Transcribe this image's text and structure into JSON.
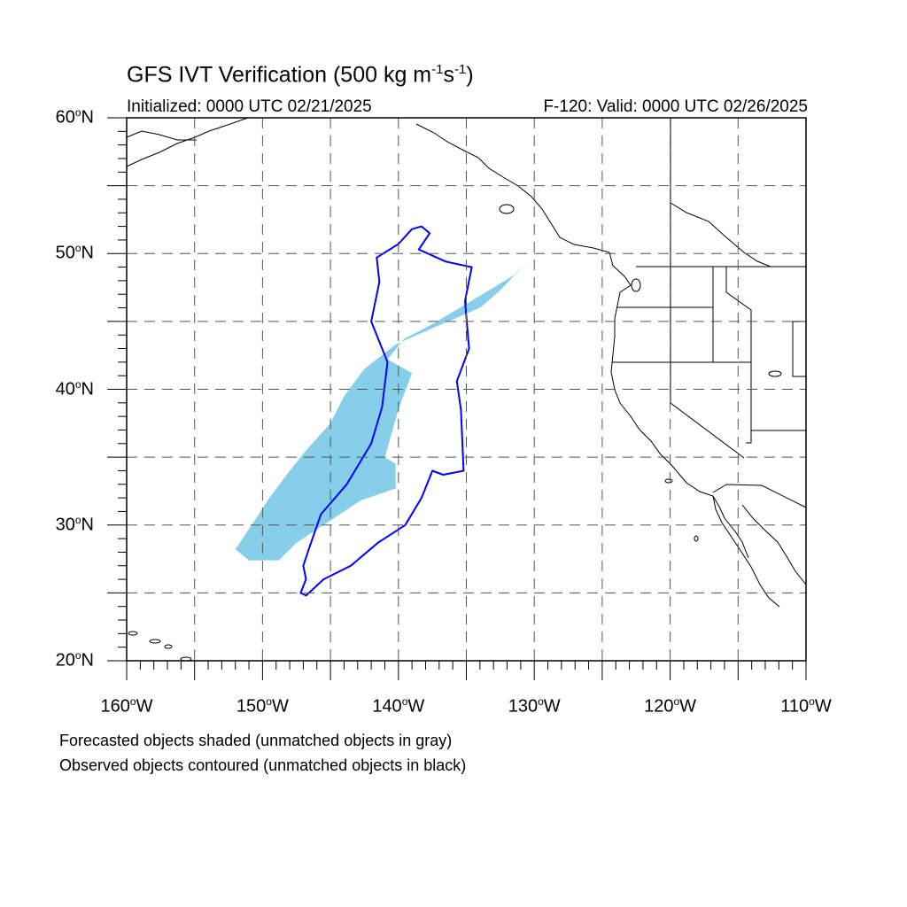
{
  "title": {
    "main": "GFS IVT Verification (500 kg m",
    "sup1": "-1",
    "mid": "s",
    "sup2": "-1",
    "end": ")"
  },
  "subtitle_left": "Initialized: 0000 UTC 02/21/2025",
  "subtitle_right": "F-120: Valid: 0000 UTC 02/26/2025",
  "map": {
    "lon_range": [
      -160,
      -110
    ],
    "lat_range": [
      20,
      60
    ],
    "lat_labels": [
      {
        "value": 60,
        "text": "60",
        "suffix": "N"
      },
      {
        "value": 50,
        "text": "50",
        "suffix": "N"
      },
      {
        "value": 40,
        "text": "40",
        "suffix": "N"
      },
      {
        "value": 30,
        "text": "30",
        "suffix": "N"
      },
      {
        "value": 20,
        "text": "20",
        "suffix": "N"
      }
    ],
    "lon_labels": [
      {
        "value": -160,
        "text": "160",
        "suffix": "W"
      },
      {
        "value": -150,
        "text": "150",
        "suffix": "W"
      },
      {
        "value": -140,
        "text": "140",
        "suffix": "W"
      },
      {
        "value": -130,
        "text": "130",
        "suffix": "W"
      },
      {
        "value": -120,
        "text": "120",
        "suffix": "W"
      },
      {
        "value": -110,
        "text": "110",
        "suffix": "W"
      }
    ],
    "grid_every_deg": 5,
    "forecast_fill_color": "#87ceeb",
    "observed_contour_color": "#0000ff"
  },
  "forecast_object_lonlat": [
    [
      -130.5,
      49.4
    ],
    [
      -131.5,
      48.4
    ],
    [
      -133.5,
      47.2
    ],
    [
      -135.5,
      46.0
    ],
    [
      -137.5,
      44.8
    ],
    [
      -139.6,
      43.7
    ],
    [
      -140.8,
      42.2
    ],
    [
      -139.0,
      41.2
    ],
    [
      -140.0,
      38.5
    ],
    [
      -141.0,
      35.0
    ],
    [
      -140.2,
      34.5
    ],
    [
      -140.2,
      32.7
    ],
    [
      -142.8,
      31.8
    ],
    [
      -145.5,
      30.0
    ],
    [
      -147.5,
      28.7
    ],
    [
      -148.8,
      27.4
    ],
    [
      -151.0,
      27.4
    ],
    [
      -152.0,
      28.2
    ],
    [
      -150.8,
      30.0
    ],
    [
      -149.5,
      32.0
    ],
    [
      -148.0,
      34.0
    ],
    [
      -146.8,
      35.5
    ],
    [
      -145.0,
      37.5
    ],
    [
      -144.0,
      39.5
    ],
    [
      -142.5,
      41.5
    ],
    [
      -140.2,
      43.3
    ],
    [
      -137.5,
      44.5
    ],
    [
      -134.0,
      46.0
    ],
    [
      -132.5,
      47.3
    ]
  ],
  "observed_object_lonlat": [
    [
      -138.3,
      52.0
    ],
    [
      -137.7,
      51.5
    ],
    [
      -138.5,
      50.3
    ],
    [
      -136.5,
      49.4
    ],
    [
      -134.6,
      49.0
    ],
    [
      -135.1,
      46.5
    ],
    [
      -134.8,
      43.0
    ],
    [
      -135.7,
      40.6
    ],
    [
      -135.4,
      38.5
    ],
    [
      -135.2,
      34.0
    ],
    [
      -136.7,
      33.7
    ],
    [
      -137.5,
      34.0
    ],
    [
      -138.3,
      32.0
    ],
    [
      -139.5,
      30.0
    ],
    [
      -141.5,
      28.7
    ],
    [
      -143.5,
      27.0
    ],
    [
      -145.5,
      26.0
    ],
    [
      -146.8,
      24.8
    ],
    [
      -147.2,
      25.0
    ],
    [
      -146.8,
      26.0
    ],
    [
      -147.0,
      27.0
    ],
    [
      -146.5,
      28.5
    ],
    [
      -145.7,
      30.8
    ],
    [
      -143.8,
      33.0
    ],
    [
      -142.0,
      36.0
    ],
    [
      -141.2,
      38.7
    ],
    [
      -140.8,
      42.0
    ],
    [
      -142.0,
      45.0
    ],
    [
      -141.4,
      47.9
    ],
    [
      -141.6,
      49.7
    ],
    [
      -140.0,
      50.7
    ],
    [
      -139.0,
      51.8
    ]
  ],
  "footnote_1": "Forecasted objects shaded (unmatched objects in gray)",
  "footnote_2": "Observed objects contoured (unmatched objects in black)"
}
